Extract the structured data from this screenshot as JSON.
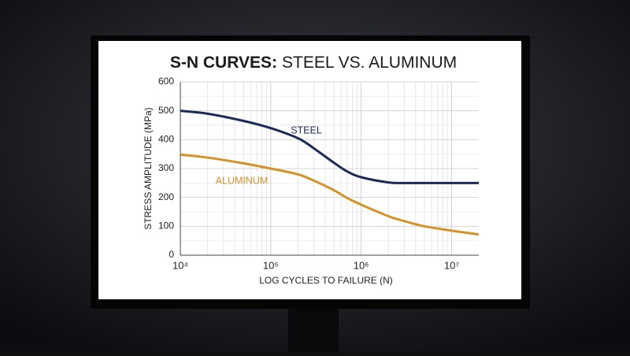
{
  "chart_data": {
    "type": "line",
    "title": [
      "S-N CURVES:",
      "STEEL VS. ALUMINUM"
    ],
    "x_label": "LOG CYCLES TO FAILURE (N)",
    "y_label": "STRESS AMPLITUDE (MPa)",
    "x": [
      10000,
      20000,
      50000,
      100000,
      200000,
      300000,
      500000,
      700000,
      1000000,
      2000000,
      3000000,
      5000000,
      10000000,
      20000000
    ],
    "series": [
      {
        "name": "STEEL",
        "color": "#1c2b55",
        "values": [
          500,
          490,
          465,
          440,
          405,
          370,
          320,
          290,
          270,
          252,
          250,
          250,
          250,
          250
        ]
      },
      {
        "name": "ALUMINUM",
        "color": "#d4922b",
        "values": [
          348,
          338,
          318,
          300,
          280,
          258,
          225,
          198,
          175,
          135,
          118,
          100,
          85,
          72
        ]
      }
    ],
    "x_log": true,
    "xlim": [
      10000,
      20000000
    ],
    "xticks": [
      {
        "value": 10000,
        "label": "10⁴"
      },
      {
        "value": 100000,
        "label": "10⁵"
      },
      {
        "value": 1000000,
        "label": "10⁶"
      },
      {
        "value": 10000000,
        "label": "10⁷"
      }
    ],
    "ylim": [
      0,
      600
    ],
    "yticks": [
      0,
      100,
      200,
      300,
      400,
      500,
      600
    ],
    "grid": true,
    "minor_grid": true
  }
}
